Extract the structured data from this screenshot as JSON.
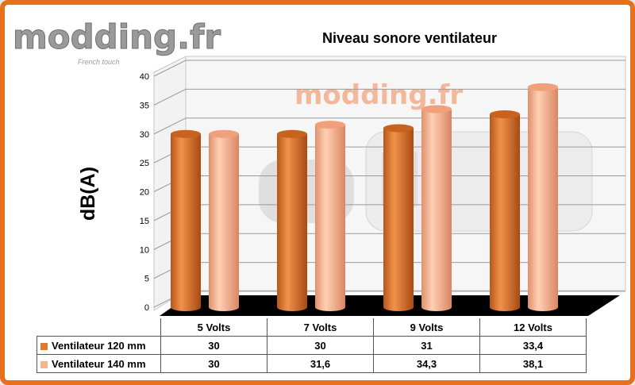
{
  "watermark": {
    "logo_text": "modding.fr",
    "tagline": "French touch",
    "bg_logo_text": "modding.fr"
  },
  "chart_data": {
    "type": "bar",
    "title": "Niveau sonore ventilateur",
    "ylabel": "dB(A)",
    "xlabel": "",
    "categories": [
      "5 Volts",
      "7 Volts",
      "9 Volts",
      "12 Volts"
    ],
    "ylim": [
      0,
      40
    ],
    "yticks": [
      0,
      5,
      10,
      15,
      20,
      25,
      30,
      35,
      40
    ],
    "grid": true,
    "legend": "table-below",
    "series": [
      {
        "name": "Ventilateur 120 mm",
        "values": [
          30,
          30,
          31,
          33.4
        ],
        "color": "#e07b2e",
        "display": [
          "30",
          "30",
          "31",
          "33,4"
        ]
      },
      {
        "name": "Ventilateur 140 mm",
        "values": [
          30,
          31.6,
          34.3,
          38.1
        ],
        "color": "#f8b48e",
        "display": [
          "30",
          "31,6",
          "34,3",
          "38,1"
        ]
      }
    ]
  }
}
